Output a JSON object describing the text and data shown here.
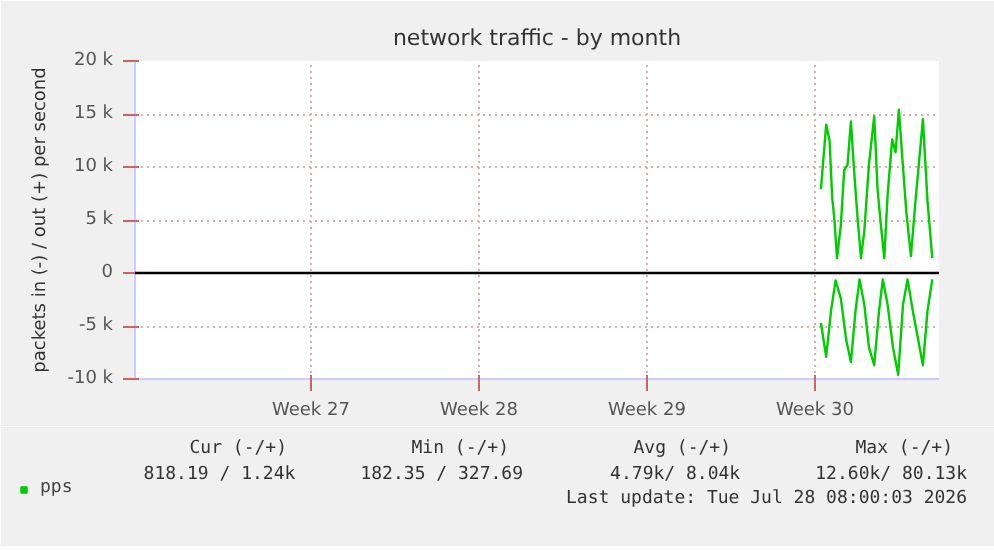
{
  "chart_data": {
    "type": "line",
    "title": "network traffic - by month",
    "ylabel": "packets in (-) / out (+) per second",
    "xlim": [
      "2026-06-25T04:05",
      "2026-07-28T16:05"
    ],
    "ylim": [
      -10000,
      20000
    ],
    "xticks": [
      {
        "value": "2026-07-02T12:00",
        "label": "Week 27"
      },
      {
        "value": "2026-07-09T12:00",
        "label": "Week 28"
      },
      {
        "value": "2026-07-16T12:00",
        "label": "Week 29"
      },
      {
        "value": "2026-07-23T12:00",
        "label": "Week 30"
      }
    ],
    "yticks": [
      {
        "value": -10000,
        "label": "-10 k"
      },
      {
        "value": -5000,
        "label": "-5 k"
      },
      0,
      {
        "value": 5000,
        "label": "5 k"
      },
      {
        "value": 10000,
        "label": "10 k"
      },
      {
        "value": 15000,
        "label": "15 k"
      },
      {
        "value": 20000,
        "label": "20 k"
      }
    ],
    "series": [
      {
        "name": "pps",
        "color": "#00cc00",
        "x": [
          "2026-07-23T18:00",
          "2026-07-23T23:17",
          "2026-07-24T02:38",
          "2026-07-24T05:17",
          "2026-07-24T07:26",
          "2026-07-24T10:05",
          "2026-07-24T13:55",
          "2026-07-24T17:17",
          "2026-07-24T20:38",
          "2026-07-25T00:00",
          "2026-07-25T03:22",
          "2026-07-25T06:43",
          "2026-07-25T10:05",
          "2026-07-25T13:26",
          "2026-07-25T18:00",
          "2026-07-25T23:17",
          "2026-07-26T02:38",
          "2026-07-26T06:00",
          "2026-07-26T09:22",
          "2026-07-26T12:43",
          "2026-07-26T17:17",
          "2026-07-26T20:38",
          "2026-07-27T00:00",
          "2026-07-27T03:22",
          "2026-07-27T07:26",
          "2026-07-27T12:00",
          "2026-07-27T16:34",
          "2026-07-28T00:00",
          "2026-07-28T04:34",
          "2026-07-28T09:22"
        ],
        "values": [
          7900,
          14000,
          12500,
          7100,
          5100,
          1400,
          4500,
          9700,
          10200,
          14300,
          9400,
          5100,
          1400,
          4000,
          10200,
          14800,
          7900,
          4500,
          1400,
          7400,
          12600,
          11400,
          15400,
          10900,
          5700,
          1600,
          6800,
          14500,
          6800,
          1400
        ]
      },
      {
        "color": "#00cc00",
        "x": [
          "2026-07-23T18:00",
          "2026-07-23T23:17",
          "2026-07-24T04:05",
          "2026-07-24T08:38",
          "2026-07-24T13:55",
          "2026-07-24T19:26",
          "2026-07-25T00:00",
          "2026-07-25T04:34",
          "2026-07-25T08:38",
          "2026-07-25T13:26",
          "2026-07-25T18:00",
          "2026-07-25T23:17",
          "2026-07-26T04:05",
          "2026-07-26T07:55",
          "2026-07-26T12:43",
          "2026-07-26T18:00",
          "2026-07-26T23:17",
          "2026-07-27T04:05",
          "2026-07-27T08:38",
          "2026-07-27T13:55",
          "2026-07-27T18:29",
          "2026-07-28T00:00",
          "2026-07-28T04:34",
          "2026-07-28T09:22"
        ],
        "values": [
          -4700,
          -7900,
          -3600,
          -700,
          -2400,
          -6400,
          -8400,
          -3600,
          -600,
          -3000,
          -7000,
          -8700,
          -3600,
          -600,
          -3000,
          -7000,
          -9600,
          -3000,
          -600,
          -3600,
          -5900,
          -8700,
          -3600,
          -600
        ]
      }
    ],
    "ref_lines": [
      {
        "axis": "y",
        "value": 0,
        "color": "#000000"
      }
    ],
    "grid": true,
    "legend": "bottom",
    "line_style": "solid",
    "marker": "none",
    "annotations": [
      "Cur (-/+)",
      "Min (-/+)",
      "Avg (-/+)",
      "Max (-/+)",
      "818.19 /   1.24k",
      "182.35 / 327.69",
      "4.79k/  8.04k",
      "12.60k/ 80.13k",
      "Last update: Tue Jul 28 08:00:03 2026"
    ]
  }
}
